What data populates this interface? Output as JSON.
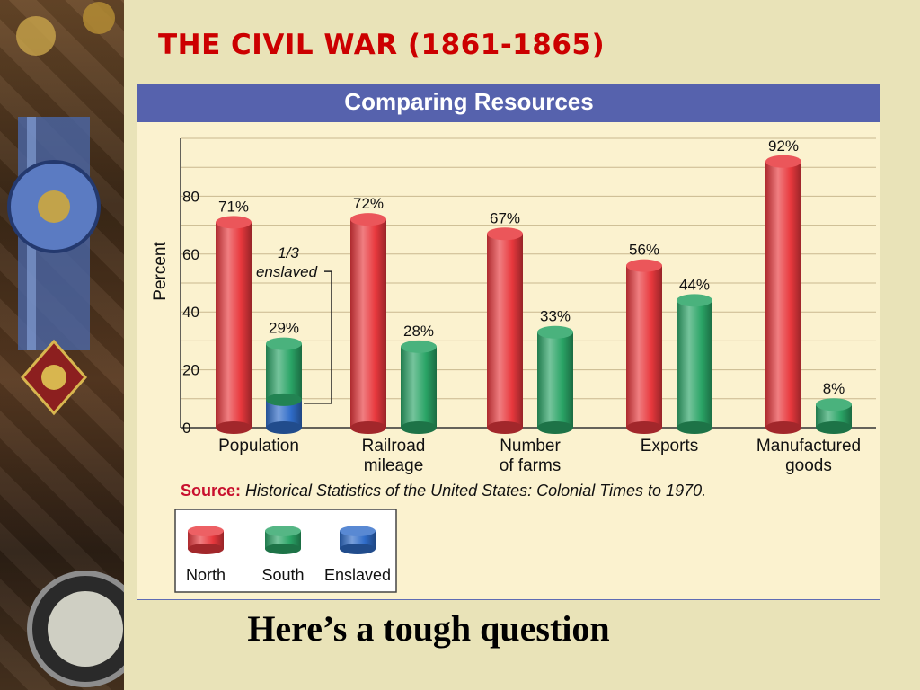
{
  "slide_title": "THE CIVIL WAR (1861-1865)",
  "caption": "Here’s a tough question",
  "colors": {
    "north": "#e8383d",
    "south": "#2aa466",
    "enslaved": "#2f6cc8",
    "title_bar": "#5662ad",
    "slide_title": "#cc0000"
  },
  "chart_data": {
    "type": "bar",
    "title": "Comparing Resources",
    "ylabel": "Percent",
    "ylim": [
      0,
      100
    ],
    "yticks": [
      0,
      20,
      40,
      60,
      80
    ],
    "categories": [
      [
        "Population"
      ],
      [
        "Railroad",
        "mileage"
      ],
      [
        "Number",
        "of farms"
      ],
      [
        "Exports"
      ],
      [
        "Manufactured",
        "goods"
      ]
    ],
    "series": [
      {
        "name": "North",
        "values": [
          71,
          72,
          67,
          56,
          92
        ],
        "labels": [
          "71%",
          "72%",
          "67%",
          "56%",
          "92%"
        ]
      },
      {
        "name": "South",
        "values": [
          29,
          28,
          33,
          44,
          8
        ],
        "labels": [
          "29%",
          "28%",
          "33%",
          "44%",
          "8%"
        ]
      }
    ],
    "enslaved_share_of_south_population": 0.3333,
    "annotation": [
      "1/3",
      "enslaved"
    ],
    "source_label": "Source:",
    "source_text": "Historical Statistics of the United States: Colonial Times to 1970.",
    "legend": [
      "North",
      "South",
      "Enslaved"
    ],
    "legend_position": "bottom-left",
    "grid": true
  }
}
